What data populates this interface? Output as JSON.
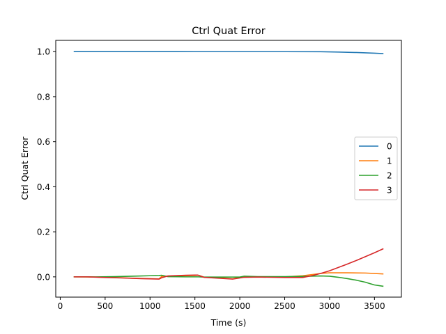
{
  "chart_data": {
    "type": "line",
    "title": "Ctrl Quat Error",
    "xlabel": "Time (s)",
    "ylabel": "Ctrl Quat Error",
    "xlim": [
      -50,
      3800
    ],
    "ylim": [
      -0.09,
      1.05
    ],
    "xticks": [
      0,
      500,
      1000,
      1500,
      2000,
      2500,
      3000,
      3500
    ],
    "xtick_labels": [
      "0",
      "500",
      "1000",
      "1500",
      "2000",
      "2500",
      "3000",
      "3500"
    ],
    "yticks": [
      0.0,
      0.2,
      0.4,
      0.6,
      0.8,
      1.0
    ],
    "ytick_labels": [
      "0.0",
      "0.2",
      "0.4",
      "0.6",
      "0.8",
      "1.0"
    ],
    "grid": false,
    "legend_position": "center-right",
    "series": [
      {
        "name": "0",
        "color": "#1f77b4",
        "x": [
          150,
          500,
          1000,
          1500,
          2000,
          2500,
          2900,
          3100,
          3300,
          3500,
          3600
        ],
        "y": [
          1.0,
          1.0,
          1.0,
          0.9998,
          0.9998,
          0.9998,
          0.9995,
          0.998,
          0.996,
          0.993,
          0.991
        ]
      },
      {
        "name": "1",
        "color": "#ff7f0e",
        "x": [
          150,
          400,
          600,
          800,
          1000,
          1100,
          1130,
          1300,
          1500,
          1540,
          1600,
          1800,
          1920,
          2000,
          2050,
          2200,
          2500,
          2700,
          2800,
          2900,
          3000,
          3200,
          3400,
          3600
        ],
        "y": [
          0.0,
          -0.001,
          -0.003,
          -0.006,
          -0.008,
          -0.009,
          0.002,
          0.004,
          0.006,
          0.007,
          -0.001,
          -0.005,
          -0.009,
          -0.002,
          -0.001,
          -0.001,
          0.0,
          0.005,
          0.01,
          0.015,
          0.018,
          0.018,
          0.017,
          0.013
        ]
      },
      {
        "name": "2",
        "color": "#2ca02c",
        "x": [
          150,
          400,
          600,
          800,
          1000,
          1100,
          1130,
          1200,
          1400,
          1500,
          1540,
          1600,
          1800,
          2000,
          2050,
          2200,
          2500,
          2700,
          2900,
          3000,
          3100,
          3200,
          3300,
          3400,
          3450,
          3500,
          3600
        ],
        "y": [
          0.0,
          0.0,
          0.001,
          0.003,
          0.005,
          0.006,
          0.007,
          0.001,
          0.0,
          0.0,
          0.0,
          -0.001,
          -0.001,
          -0.001,
          0.003,
          0.001,
          0.001,
          0.002,
          0.004,
          0.003,
          -0.002,
          -0.008,
          -0.015,
          -0.024,
          -0.03,
          -0.036,
          -0.042
        ]
      },
      {
        "name": "3",
        "color": "#d62728",
        "x": [
          150,
          300,
          500,
          700,
          900,
          1100,
          1130,
          1200,
          1400,
          1500,
          1530,
          1600,
          1800,
          1920,
          2000,
          2050,
          2200,
          2500,
          2700,
          2800,
          2900,
          3000,
          3100,
          3200,
          3300,
          3400,
          3500,
          3600
        ],
        "y": [
          0.0,
          0.0,
          -0.003,
          -0.005,
          -0.008,
          -0.01,
          -0.004,
          0.004,
          0.007,
          0.008,
          0.008,
          -0.002,
          -0.007,
          -0.01,
          -0.005,
          -0.002,
          -0.001,
          -0.003,
          -0.003,
          0.005,
          0.015,
          0.027,
          0.042,
          0.057,
          0.073,
          0.09,
          0.107,
          0.125
        ]
      }
    ]
  }
}
